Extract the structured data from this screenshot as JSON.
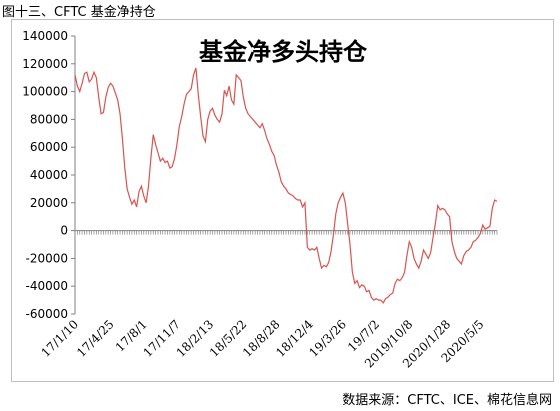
{
  "figure_caption": "图十三、CFTC 基金净持仓",
  "source_note": "数据来源：CFTC、ICE、棉花信息网",
  "chart_data": {
    "type": "line",
    "title": "基金净多头持仓",
    "xlabel": "",
    "ylabel": "",
    "ylim": [
      -60000,
      140000
    ],
    "y_ticks": [
      -60000,
      -40000,
      -20000,
      0,
      20000,
      40000,
      60000,
      80000,
      100000,
      120000,
      140000
    ],
    "y_tick_labels": [
      "-60000",
      "-40000",
      "-20000",
      "0",
      "20000",
      "40000",
      "60000",
      "80000",
      "100000",
      "120000",
      "140000"
    ],
    "x_tick_labels": [
      "17/1/10",
      "17/4/25",
      "17/8/1",
      "17/11/7",
      "18/2/13",
      "18/5/22",
      "18/8/28",
      "18/12/4",
      "19/3/26",
      "19/7/2",
      "2019/10/8",
      "2020/1/28",
      "2020/5/5"
    ],
    "x_tick_index": [
      0,
      15,
      29,
      43,
      57,
      71,
      85,
      99,
      113,
      127,
      141,
      157,
      171
    ],
    "grid": false,
    "legend": "none",
    "line_color": "#d9534f",
    "series": [
      {
        "values": [
          112000,
          104000,
          100000,
          106000,
          113000,
          114000,
          107000,
          109000,
          114000,
          110000,
          96000,
          84000,
          85000,
          96000,
          103000,
          106000,
          104000,
          99000,
          94000,
          84000,
          66000,
          45000,
          30000,
          24000,
          19000,
          22000,
          17000,
          28000,
          32000,
          25000,
          20000,
          32000,
          52000,
          69000,
          62000,
          56000,
          50000,
          52000,
          49000,
          50000,
          45000,
          46000,
          52000,
          62000,
          75000,
          82000,
          91000,
          98000,
          100000,
          102000,
          112000,
          117000,
          98000,
          82000,
          68000,
          64000,
          80000,
          86000,
          88000,
          83000,
          80000,
          78000,
          84000,
          101000,
          97000,
          104000,
          94000,
          91000,
          112000,
          110000,
          108000,
          96000,
          88000,
          84000,
          82000,
          80000,
          78000,
          76000,
          74000,
          77000,
          72000,
          66000,
          62000,
          57000,
          54000,
          47000,
          42000,
          35000,
          32000,
          30000,
          27000,
          26000,
          25000,
          23000,
          22000,
          22000,
          17000,
          20000,
          -12000,
          -14000,
          -13000,
          -14000,
          -12000,
          -20000,
          -27000,
          -25000,
          -26000,
          -23000,
          -15000,
          -3000,
          12000,
          20000,
          24000,
          27000,
          20000,
          5000,
          -10000,
          -30000,
          -38000,
          -36000,
          -41000,
          -39000,
          -40000,
          -44000,
          -43000,
          -48000,
          -50000,
          -49000,
          -50000,
          -50000,
          -52000,
          -49000,
          -48000,
          -46000,
          -45000,
          -38000,
          -35000,
          -36000,
          -34000,
          -30000,
          -18000,
          -8000,
          -12000,
          -20000,
          -24000,
          -27000,
          -22000,
          -14000,
          -17000,
          -20000,
          -16000,
          -5000,
          5000,
          18000,
          15000,
          16000,
          15000,
          12000,
          10000,
          -8000,
          -15000,
          -20000,
          -22000,
          -24000,
          -18000,
          -15000,
          -14000,
          -12000,
          -8000,
          -7000,
          -5000,
          -2000,
          4000,
          1000,
          2000,
          3000,
          16000,
          22000,
          21000
        ]
      }
    ]
  }
}
